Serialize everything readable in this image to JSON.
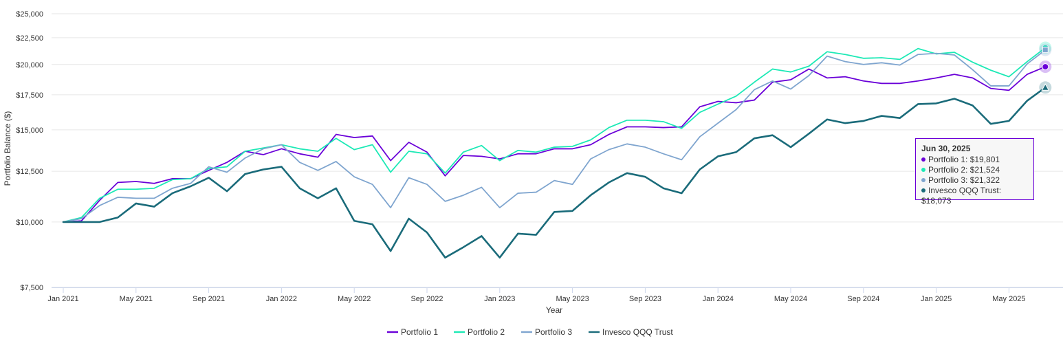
{
  "chart_data": {
    "type": "line",
    "xlabel": "Year",
    "ylabel": "Portfolio Balance ($)",
    "y_scale": "log",
    "ylim": [
      7500,
      25000
    ],
    "y_ticks": [
      "$7,500",
      "$10,000",
      "$12,500",
      "$15,000",
      "$17,500",
      "$20,000",
      "$22,500",
      "$25,000"
    ],
    "y_tick_values": [
      7500,
      10000,
      12500,
      15000,
      17500,
      20000,
      22500,
      25000
    ],
    "x_ticks": [
      "Jan 2021",
      "May 2021",
      "Sep 2021",
      "Jan 2022",
      "May 2022",
      "Sep 2022",
      "Jan 2023",
      "May 2023",
      "Sep 2023",
      "Jan 2024",
      "May 2024",
      "Sep 2024",
      "Jan 2025",
      "May 2025"
    ],
    "x_tick_index": [
      0,
      4,
      8,
      12,
      16,
      20,
      24,
      28,
      32,
      36,
      40,
      44,
      48,
      52
    ],
    "x": [
      "Dec 2020",
      "Jan 2021",
      "Feb 2021",
      "Mar 2021",
      "Apr 2021",
      "May 2021",
      "Jun 2021",
      "Jul 2021",
      "Aug 2021",
      "Sep 2021",
      "Oct 2021",
      "Nov 2021",
      "Dec 2021",
      "Jan 2022",
      "Feb 2022",
      "Mar 2022",
      "Apr 2022",
      "May 2022",
      "Jun 2022",
      "Jul 2022",
      "Aug 2022",
      "Sep 2022",
      "Oct 2022",
      "Nov 2022",
      "Dec 2022",
      "Jan 2023",
      "Feb 2023",
      "Mar 2023",
      "Apr 2023",
      "May 2023",
      "Jun 2023",
      "Jul 2023",
      "Aug 2023",
      "Sep 2023",
      "Oct 2023",
      "Nov 2023",
      "Dec 2023",
      "Jan 2024",
      "Feb 2024",
      "Mar 2024",
      "Apr 2024",
      "May 2024",
      "Jun 2024",
      "Jul 2024",
      "Aug 2024",
      "Sep 2024",
      "Oct 2024",
      "Nov 2024",
      "Dec 2024",
      "Jan 2025",
      "Feb 2025",
      "Mar 2025",
      "Apr 2025",
      "May 2025",
      "Jun 2025"
    ],
    "x_start_offset": -1,
    "grid": true,
    "legend_position": "bottom-center",
    "series": [
      {
        "name": "Portfolio 1",
        "color": "#6a00d8",
        "values": [
          10000,
          10050,
          11000,
          11900,
          11950,
          11850,
          12100,
          12100,
          12550,
          13000,
          13650,
          13450,
          13800,
          13500,
          13300,
          14700,
          14500,
          14600,
          13100,
          14200,
          13600,
          12250,
          13400,
          13350,
          13200,
          13500,
          13500,
          13800,
          13800,
          14050,
          14700,
          15200,
          15200,
          15150,
          15200,
          16600,
          17000,
          16900,
          17100,
          18500,
          18700,
          19600,
          18850,
          18950,
          18600,
          18400,
          18400,
          18600,
          18850,
          19150,
          18850,
          18000,
          17850,
          19150,
          19801
        ]
      },
      {
        "name": "Portfolio 2",
        "color": "#1de9b6",
        "values": [
          10000,
          10200,
          11100,
          11550,
          11550,
          11600,
          12050,
          12100,
          12650,
          12750,
          13650,
          13850,
          14050,
          13800,
          13650,
          14450,
          13750,
          14050,
          12450,
          13650,
          13500,
          12400,
          13600,
          14000,
          13100,
          13700,
          13600,
          13900,
          13950,
          14350,
          15150,
          15650,
          15650,
          15550,
          15100,
          16200,
          16800,
          17400,
          18500,
          19600,
          19350,
          19850,
          21150,
          20900,
          20550,
          20600,
          20450,
          21450,
          20950,
          21100,
          20200,
          19500,
          18950,
          20250,
          21524
        ]
      },
      {
        "name": "Portfolio 3",
        "color": "#7fa5cf",
        "values": [
          10000,
          10150,
          10750,
          11150,
          11100,
          11100,
          11600,
          11850,
          12750,
          12450,
          13250,
          13800,
          14050,
          13000,
          12550,
          13050,
          12200,
          11800,
          10650,
          12150,
          11800,
          10950,
          11250,
          11650,
          10650,
          11350,
          11400,
          12000,
          11800,
          13200,
          13750,
          14100,
          13900,
          13500,
          13150,
          14550,
          15450,
          16400,
          17900,
          18600,
          17950,
          19050,
          20750,
          20250,
          20000,
          20150,
          19950,
          20900,
          21000,
          20850,
          19550,
          18200,
          18200,
          20050,
          21322
        ]
      },
      {
        "name": "Invesco QQQ Trust",
        "color": "#1a6b7a",
        "values": [
          10000,
          10000,
          10000,
          10200,
          10850,
          10700,
          11350,
          11700,
          12150,
          11450,
          12350,
          12600,
          12750,
          11600,
          11100,
          11600,
          10050,
          9900,
          8800,
          10150,
          9550,
          8550,
          8950,
          9400,
          8550,
          9500,
          9450,
          10450,
          10500,
          11250,
          11900,
          12400,
          12200,
          11600,
          11350,
          12600,
          13350,
          13600,
          14450,
          14650,
          13900,
          14750,
          15700,
          15450,
          15600,
          15950,
          15800,
          16800,
          16850,
          17200,
          16700,
          15400,
          15600,
          17050,
          18073
        ]
      }
    ]
  },
  "tooltip": {
    "title": "Jun 30, 2025",
    "lines": [
      {
        "text": "Portfolio 1: $19,801",
        "color": "#6a00d8"
      },
      {
        "text": "Portfolio 2: $21,524",
        "color": "#1de9b6"
      },
      {
        "text": "Portfolio 3: $21,322",
        "color": "#7fa5cf"
      },
      {
        "text": "Invesco QQQ Trust: $18,073",
        "color": "#1a6b7a"
      }
    ]
  },
  "legend": [
    "Portfolio 1",
    "Portfolio 2",
    "Portfolio 3",
    "Invesco QQQ Trust"
  ]
}
